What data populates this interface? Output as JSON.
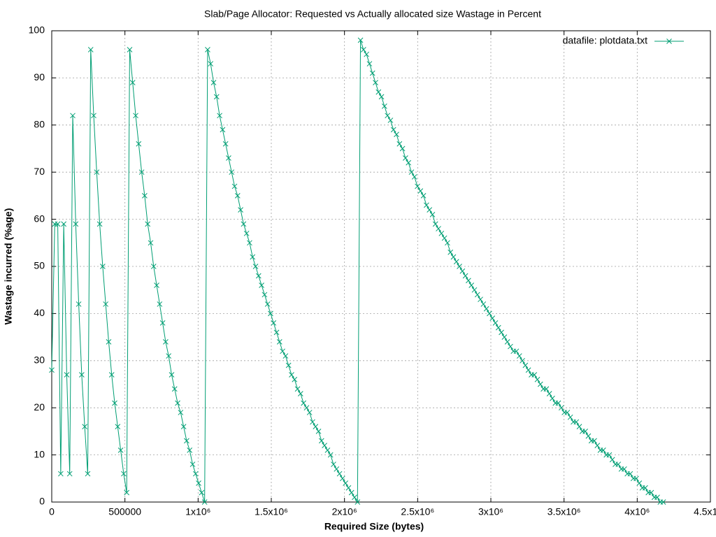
{
  "chart_data": {
    "type": "line",
    "title": "Slab/Page Allocator: Requested vs Actually allocated size Wastage in Percent",
    "x_label": "Required Size (bytes)",
    "y_label": "Wastage incurred (%age)",
    "xlim": [
      0,
      4500000
    ],
    "ylim": [
      0,
      100
    ],
    "xticks": [
      0,
      500000,
      {
        "value": 1000000,
        "label": "1x10⁶"
      },
      {
        "value": 1500000,
        "label": "1.5x10⁶"
      },
      {
        "value": 2000000,
        "label": "2x10⁶"
      },
      {
        "value": 2500000,
        "label": "2.5x10⁶"
      },
      {
        "value": 3000000,
        "label": "3x10⁶"
      },
      {
        "value": 3500000,
        "label": "3.5x10⁶"
      },
      {
        "value": 4000000,
        "label": "4x10⁶"
      },
      {
        "value": 4500000,
        "label": "4.5x10⁶"
      }
    ],
    "yticks": [
      0,
      10,
      20,
      30,
      40,
      50,
      60,
      70,
      80,
      90,
      100
    ],
    "grid": true,
    "legend": "top-right",
    "x": [
      0,
      20480,
      40960,
      61440,
      81920,
      102400,
      122880,
      143360,
      163840,
      184320,
      204800,
      225280,
      245760,
      266240,
      286720,
      307200,
      327680,
      348160,
      368640,
      389120,
      409600,
      430080,
      450560,
      471040,
      491520,
      512000,
      532480,
      552960,
      573440,
      593920,
      614400,
      634880,
      655360,
      675840,
      696320,
      716800,
      737280,
      757760,
      778240,
      798720,
      819200,
      839680,
      860160,
      880640,
      901120,
      921600,
      942080,
      962560,
      983040,
      1003520,
      1024000,
      1044480,
      1064960,
      1085440,
      1105920,
      1126400,
      1146880,
      1167360,
      1187840,
      1208320,
      1228800,
      1249280,
      1269760,
      1290240,
      1310720,
      1331200,
      1351680,
      1372160,
      1392640,
      1413120,
      1433600,
      1454080,
      1474560,
      1495040,
      1515520,
      1536000,
      1556480,
      1576960,
      1597440,
      1617920,
      1638400,
      1658880,
      1679360,
      1699840,
      1720320,
      1740800,
      1761280,
      1781760,
      1802240,
      1822720,
      1843200,
      1863680,
      1884160,
      1904640,
      1925120,
      1945600,
      1966080,
      1986560,
      2007040,
      2027520,
      2048000,
      2068480,
      2088960,
      2109440,
      2129920,
      2150400,
      2170880,
      2191360,
      2211840,
      2232320,
      2252800,
      2273280,
      2293760,
      2314240,
      2334720,
      2355200,
      2375680,
      2396160,
      2416640,
      2437120,
      2457600,
      2478080,
      2498560,
      2519040,
      2539520,
      2560000,
      2580480,
      2600960,
      2621440,
      2641920,
      2662400,
      2682880,
      2703360,
      2723840,
      2744320,
      2764800,
      2785280,
      2805760,
      2826240,
      2846720,
      2867200,
      2887680,
      2908160,
      2928640,
      2949120,
      2969600,
      2990080,
      3010560,
      3031040,
      3051520,
      3072000,
      3092480,
      3112960,
      3133440,
      3153920,
      3174400,
      3194880,
      3215360,
      3235840,
      3256320,
      3276800,
      3297280,
      3317760,
      3338240,
      3358720,
      3379200,
      3399680,
      3420160,
      3440640,
      3461120,
      3481600,
      3502080,
      3522560,
      3543040,
      3563520,
      3584000,
      3604480,
      3624960,
      3645440,
      3665920,
      3686400,
      3706880,
      3727360,
      3747840,
      3768320,
      3788800,
      3809280,
      3829760,
      3850240,
      3870720,
      3891200,
      3911680,
      3932160,
      3952640,
      3973120,
      3993600,
      4014080,
      4034560,
      4055040,
      4075520,
      4096000,
      4116480,
      4136960,
      4157440,
      4177920
    ],
    "series": [
      {
        "name": "datafile: plotdata.txt",
        "color": "#009e73",
        "values": [
          28,
          59,
          59,
          6,
          59,
          27,
          6,
          82,
          59,
          42,
          27,
          16,
          6,
          96,
          82,
          70,
          59,
          50,
          42,
          34,
          27,
          21,
          16,
          11,
          6,
          2,
          96,
          89,
          82,
          76,
          70,
          65,
          59,
          55,
          50,
          46,
          42,
          38,
          34,
          31,
          27,
          24,
          21,
          19,
          16,
          13,
          11,
          8,
          6,
          4,
          2,
          0,
          96,
          93,
          89,
          86,
          82,
          79,
          76,
          73,
          70,
          67,
          65,
          62,
          59,
          57,
          55,
          52,
          50,
          48,
          46,
          44,
          42,
          40,
          38,
          36,
          34,
          32,
          31,
          29,
          27,
          26,
          24,
          23,
          21,
          20,
          19,
          17,
          16,
          15,
          13,
          12,
          11,
          10,
          8,
          7,
          6,
          5,
          4,
          3,
          2,
          1,
          0,
          98,
          96,
          95,
          93,
          91,
          89,
          87,
          86,
          84,
          82,
          81,
          79,
          78,
          76,
          75,
          73,
          72,
          70,
          69,
          67,
          66,
          65,
          63,
          62,
          61,
          59,
          58,
          57,
          56,
          55,
          53,
          52,
          51,
          50,
          49,
          48,
          47,
          46,
          45,
          44,
          43,
          42,
          41,
          40,
          39,
          38,
          37,
          36,
          35,
          34,
          33,
          32,
          32,
          31,
          30,
          29,
          28,
          27,
          27,
          26,
          25,
          24,
          24,
          23,
          22,
          21,
          21,
          20,
          19,
          19,
          18,
          17,
          17,
          16,
          15,
          15,
          14,
          13,
          13,
          12,
          11,
          11,
          10,
          10,
          9,
          8,
          8,
          7,
          7,
          6,
          6,
          5,
          5,
          4,
          3,
          3,
          2,
          2,
          1,
          1,
          0,
          0
        ]
      }
    ]
  }
}
